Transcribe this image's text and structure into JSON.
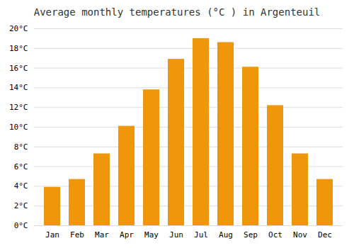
{
  "chart_data": {
    "type": "bar",
    "title": "Average monthly temperatures (°C ) in Argenteuil",
    "categories": [
      "Jan",
      "Feb",
      "Mar",
      "Apr",
      "May",
      "Jun",
      "Jul",
      "Aug",
      "Sep",
      "Oct",
      "Nov",
      "Dec"
    ],
    "values": [
      3.9,
      4.7,
      7.3,
      10.1,
      13.8,
      16.9,
      19.0,
      18.6,
      16.1,
      12.2,
      7.3,
      4.7
    ],
    "color": "#F0960A",
    "ylim": [
      0,
      20
    ],
    "yticks": [
      {
        "value": 0,
        "label": "0°C"
      },
      {
        "value": 2,
        "label": "2°C"
      },
      {
        "value": 4,
        "label": "4°C"
      },
      {
        "value": 6,
        "label": "6°C"
      },
      {
        "value": 8,
        "label": "8°C"
      },
      {
        "value": 10,
        "label": "10°C"
      },
      {
        "value": 12,
        "label": "12°C"
      },
      {
        "value": 14,
        "label": "14°C"
      },
      {
        "value": 16,
        "label": "16°C"
      },
      {
        "value": 18,
        "label": "18°C"
      },
      {
        "value": 20,
        "label": "20°C"
      }
    ],
    "grid": true
  }
}
